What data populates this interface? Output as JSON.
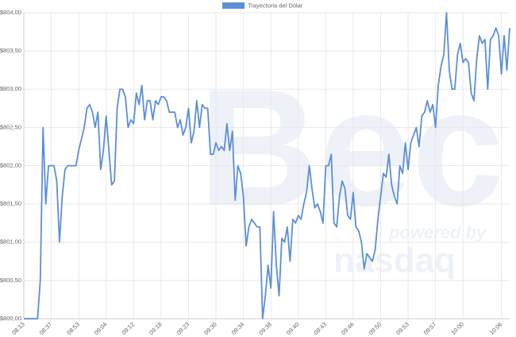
{
  "chart_data": {
    "type": "line",
    "legend": "top",
    "grid": true,
    "watermark": [
      "Bec",
      "powered by",
      "nasdaq"
    ],
    "categories": [
      "08:13",
      null,
      null,
      null,
      null,
      null,
      null,
      null,
      null,
      null,
      "08:37",
      null,
      null,
      null,
      null,
      null,
      null,
      null,
      null,
      null,
      "08:53",
      null,
      null,
      null,
      null,
      null,
      null,
      null,
      null,
      null,
      "09:04",
      null,
      null,
      null,
      null,
      null,
      null,
      null,
      null,
      null,
      "09:12",
      null,
      null,
      null,
      null,
      null,
      null,
      null,
      null,
      null,
      "09:18",
      null,
      null,
      null,
      null,
      null,
      null,
      null,
      null,
      null,
      "09:23",
      null,
      null,
      null,
      null,
      null,
      null,
      null,
      null,
      null,
      "09:30",
      null,
      null,
      null,
      null,
      null,
      null,
      null,
      null,
      null,
      "09:34",
      null,
      null,
      null,
      null,
      null,
      null,
      null,
      null,
      null,
      "09:38",
      null,
      null,
      null,
      null,
      null,
      null,
      null,
      null,
      null,
      "09:40",
      null,
      null,
      null,
      null,
      null,
      null,
      null,
      null,
      null,
      "09:43",
      null,
      null,
      null,
      null,
      null,
      null,
      null,
      null,
      null,
      "09:46",
      null,
      null,
      null,
      null,
      null,
      null,
      null,
      null,
      null,
      "09:50",
      null,
      null,
      null,
      null,
      null,
      null,
      null,
      null,
      null,
      "09:53",
      null,
      null,
      null,
      null,
      null,
      null,
      null,
      null,
      null,
      "09:57",
      null,
      null,
      null,
      null,
      null,
      null,
      null,
      null,
      null,
      "10:00",
      null,
      null,
      null,
      null,
      null,
      null,
      null,
      null,
      null,
      null,
      null,
      null,
      null,
      "10:06",
      null,
      null,
      null
    ],
    "series": [
      {
        "name": "Trayectoria del Dólar",
        "color": "#5b8fd6",
        "values": [
          800,
          800,
          800,
          800,
          800,
          800,
          800.5,
          802.5,
          801.5,
          802,
          802,
          802,
          801.8,
          801,
          801.6,
          801.95,
          802,
          802,
          802,
          802,
          802.2,
          802.35,
          802.5,
          802.75,
          802.8,
          802.7,
          802.5,
          802.7,
          801.95,
          802.2,
          802.65,
          802.2,
          801.75,
          801.8,
          802.75,
          803,
          803,
          802.9,
          802.5,
          802.6,
          802.55,
          802.95,
          802.8,
          803.05,
          802.6,
          802.85,
          802.85,
          802.6,
          802.85,
          802.8,
          802.9,
          802.9,
          802.85,
          802.7,
          802.7,
          802.7,
          802.5,
          802.6,
          802.4,
          802.5,
          802.75,
          802.3,
          802.45,
          802.85,
          802.5,
          802.8,
          802.75,
          802.75,
          802.15,
          802.15,
          802.3,
          802.2,
          802.25,
          802.2,
          802.55,
          802.2,
          802.45,
          801.55,
          802,
          801.9,
          801.6,
          800.95,
          801.2,
          801.3,
          801.25,
          801.2,
          801.2,
          800,
          800.3,
          800.7,
          800.4,
          801.4,
          800.7,
          800.3,
          801.05,
          801,
          801.2,
          800.75,
          801.3,
          801.25,
          801.35,
          801.3,
          801.5,
          801.65,
          802,
          801.7,
          801.45,
          801.5,
          801.4,
          801.25,
          802,
          802,
          802.15,
          801.25,
          801.2,
          801.6,
          801.8,
          801.7,
          801.35,
          801.3,
          801.65,
          801.2,
          801.15,
          801,
          800.65,
          800.85,
          800.8,
          800.75,
          800.9,
          801.3,
          801.6,
          801.9,
          801.85,
          802.15,
          801.75,
          801.6,
          801.5,
          802,
          801.9,
          802.3,
          801.95,
          802.3,
          802.4,
          802.5,
          802.25,
          802.65,
          802.7,
          802.85,
          802.7,
          802.8,
          802.5,
          803.05,
          803.3,
          803.45,
          804,
          803.25,
          803,
          803,
          803.45,
          803.6,
          803.35,
          803.4,
          803.35,
          802.95,
          802.85,
          803.4,
          803.7,
          803.6,
          803.65,
          803,
          803.65,
          803.7,
          803.8,
          803.7,
          803.2,
          803.7,
          803.25,
          803.8
        ]
      }
    ],
    "ylim": [
      800,
      804
    ],
    "yticks": [
      {
        "value": 800,
        "label": "$800,00"
      },
      {
        "value": 800.5,
        "label": "$800,50"
      },
      {
        "value": 801,
        "label": "$801,00"
      },
      {
        "value": 801.5,
        "label": "$801,50"
      },
      {
        "value": 802,
        "label": "$802,00"
      },
      {
        "value": 802.5,
        "label": "$802,50"
      },
      {
        "value": 803,
        "label": "$803,00"
      },
      {
        "value": 803.5,
        "label": "$803,50"
      },
      {
        "value": 804,
        "label": "$804,00"
      }
    ]
  }
}
